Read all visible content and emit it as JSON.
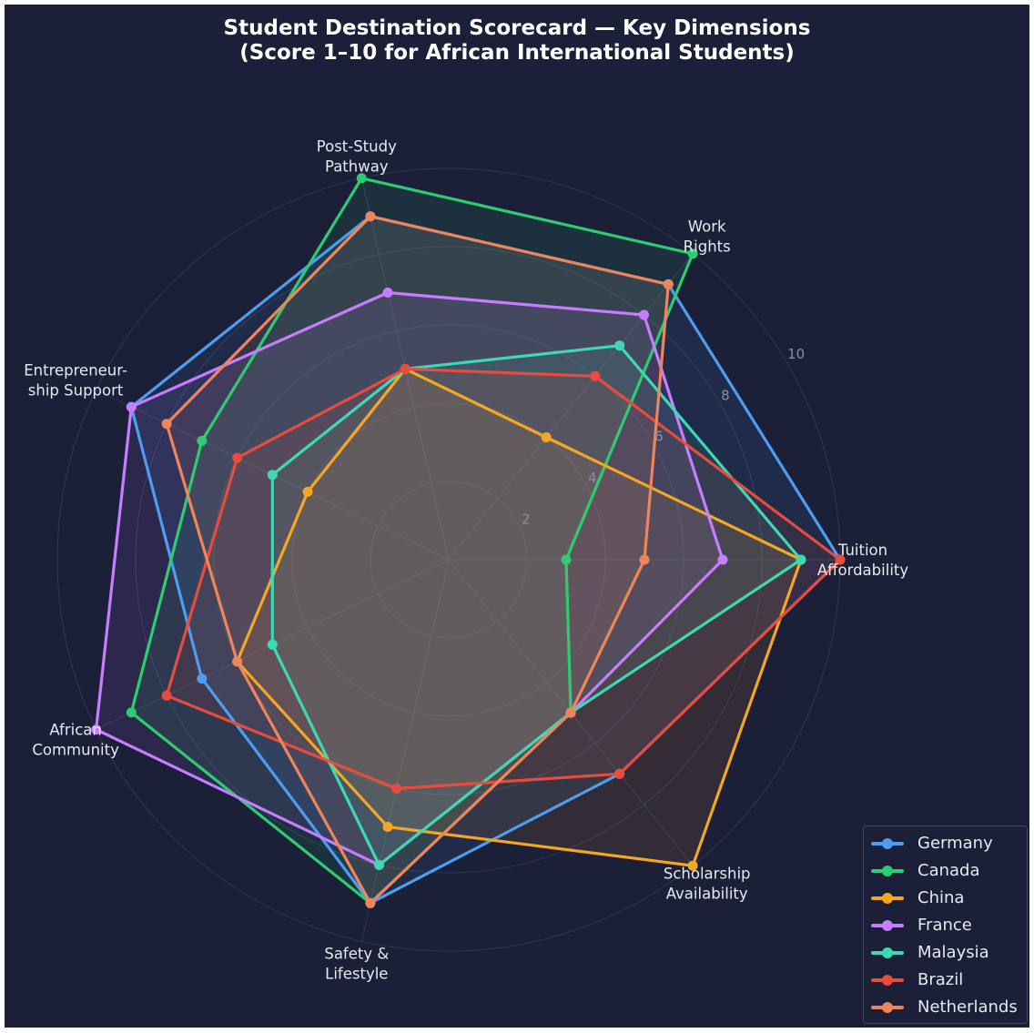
{
  "title_lines": [
    "Student Destination Scorecard — Key Dimensions",
    "(Score 1–10 for African International Students)"
  ],
  "chart_data": {
    "type": "radar",
    "axes": [
      "Tuition Affordability",
      "Work Rights",
      "Post-Study Pathway",
      "Entrepreneurship Support",
      "African Community",
      "Safety & Lifestyle",
      "Scholarship Availability"
    ],
    "axis_label_lines": [
      [
        "Tuition",
        "Affordability"
      ],
      [
        "Work",
        "Rights"
      ],
      [
        "Post-Study",
        "Pathway"
      ],
      [
        "Entrepreneur-",
        "ship Support"
      ],
      [
        "African",
        "Community"
      ],
      [
        "Safety &",
        "Lifestyle"
      ],
      [
        "Scholarship",
        "Availability"
      ]
    ],
    "r_range": [
      0,
      10
    ],
    "r_ticks": [
      2,
      4,
      6,
      8,
      10
    ],
    "grid": true,
    "legend_position": "bottom-right",
    "series": [
      {
        "name": "Germany",
        "color": "#4e9df0",
        "values": [
          10,
          9,
          9,
          9,
          7,
          9,
          7
        ]
      },
      {
        "name": "Canada",
        "color": "#2ecc71",
        "values": [
          3,
          10,
          10,
          7,
          9,
          9,
          5
        ]
      },
      {
        "name": "China",
        "color": "#f5a623",
        "values": [
          9,
          4,
          5,
          4,
          6,
          7,
          10
        ]
      },
      {
        "name": "France",
        "color": "#c77dff",
        "values": [
          7,
          8,
          7,
          9,
          10,
          8,
          5
        ]
      },
      {
        "name": "Malaysia",
        "color": "#3dd9b5",
        "values": [
          9,
          7,
          5,
          5,
          5,
          8,
          5
        ]
      },
      {
        "name": "Brazil",
        "color": "#e74c3c",
        "values": [
          10,
          6,
          5,
          6,
          8,
          6,
          7
        ]
      },
      {
        "name": "Netherlands",
        "color": "#f0855a",
        "values": [
          5,
          9,
          9,
          8,
          6,
          9,
          5
        ]
      }
    ]
  }
}
